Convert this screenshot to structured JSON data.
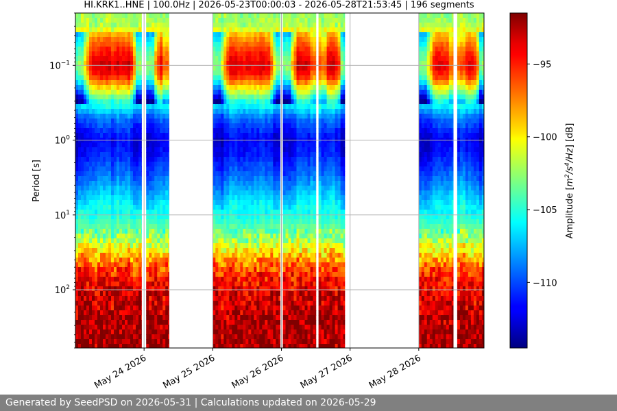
{
  "chart_data": {
    "type": "heatmap",
    "title": "HI.KRK1..HNE | 100.0Hz | 2026-05-23T00:00:03 - 2026-05-28T21:53:45 | 196 segments",
    "xlabel": "",
    "ylabel": "Period [s]",
    "x_ticks": [
      "May 24 2026",
      "May 25 2026",
      "May 26 2026",
      "May 27 2026",
      "May 28 2026"
    ],
    "y_ticks": [
      {
        "base": "10",
        "exp": "−1",
        "value": 0.1
      },
      {
        "base": "10",
        "exp": "0",
        "value": 1
      },
      {
        "base": "10",
        "exp": "1",
        "value": 10
      },
      {
        "base": "10",
        "exp": "2",
        "value": 100
      }
    ],
    "y_scale": "log",
    "y_inverted": true,
    "ylim": [
      0.02,
      600
    ],
    "xlim_days": [
      23.0,
      28.95
    ],
    "grid": true,
    "data_segments_days": [
      [
        23.0,
        23.96
      ],
      [
        24.03,
        24.36
      ],
      [
        25.0,
        25.98
      ],
      [
        26.02,
        26.5
      ],
      [
        26.54,
        26.92
      ],
      [
        28.0,
        28.5
      ],
      [
        28.56,
        28.95
      ]
    ],
    "colorbar": {
      "label_parts": [
        "Amplitude [",
        "m",
        "2",
        "/s",
        "4",
        "/Hz",
        "] [dB]"
      ],
      "ticks": [
        "−95",
        "−100",
        "−105",
        "−110"
      ],
      "tick_values": [
        -95,
        -100,
        -105,
        -110
      ],
      "range": [
        -114.5,
        -91.5
      ],
      "colormap": "jet"
    }
  },
  "footer": {
    "text": "Generated by SeedPSD on 2026-05-31 | Calculations updated on 2026-05-29"
  }
}
